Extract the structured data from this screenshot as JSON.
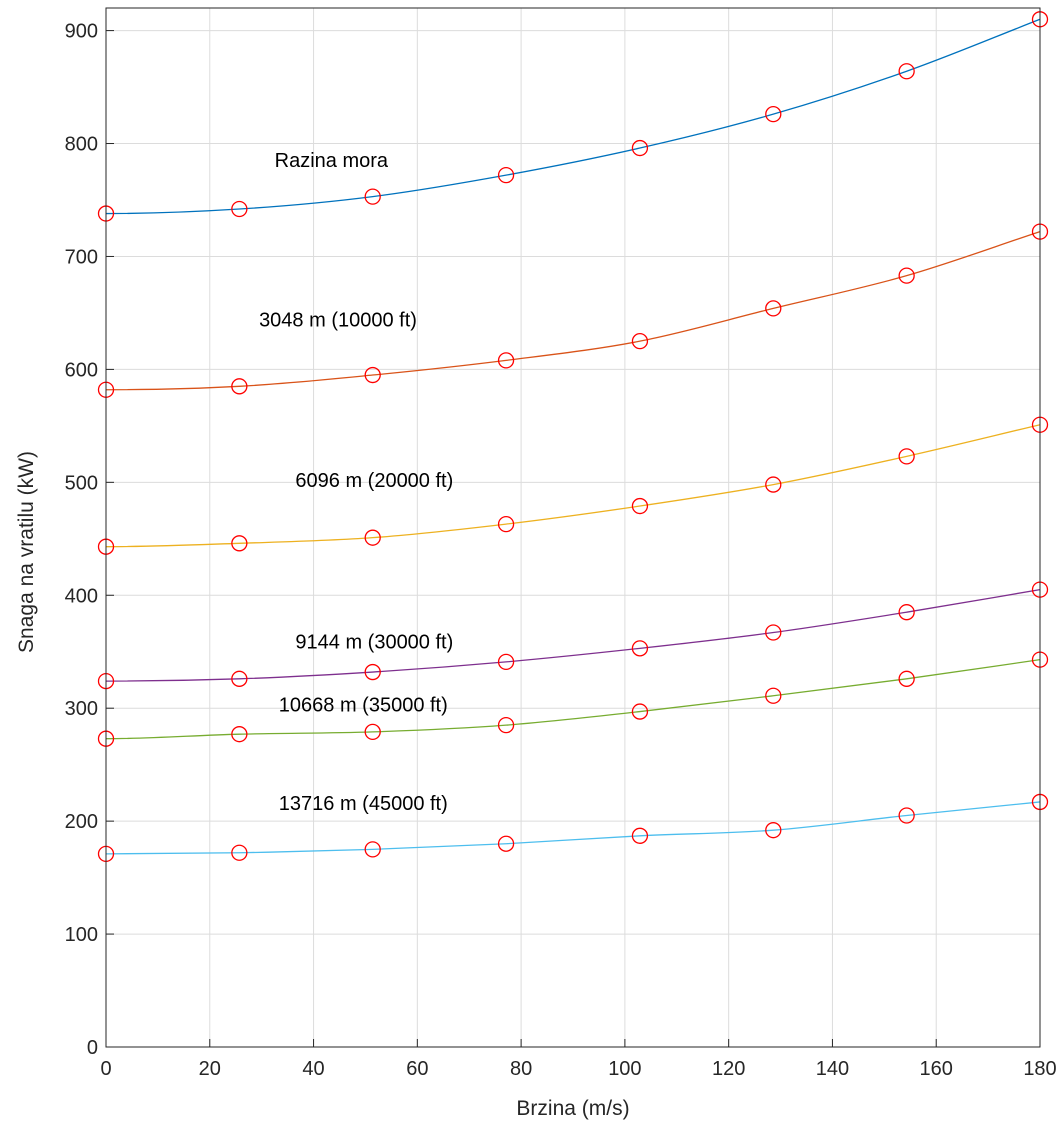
{
  "chart_data": {
    "type": "line",
    "title": "",
    "xlabel": "Brzina (m/s)",
    "ylabel": "Snaga na vratilu (kW)",
    "xlim": [
      0,
      180
    ],
    "ylim": [
      0,
      920
    ],
    "xticks": [
      0,
      20,
      40,
      60,
      80,
      100,
      120,
      140,
      160,
      180
    ],
    "yticks": [
      0,
      100,
      200,
      300,
      400,
      500,
      600,
      700,
      800,
      900
    ],
    "grid": true,
    "x": [
      0,
      25.7,
      51.4,
      77.1,
      102.9,
      128.6,
      154.3,
      180
    ],
    "marker": "circle",
    "marker_color": "#ff0000",
    "series": [
      {
        "name": "Razina mora",
        "color": "#0072bd",
        "values": [
          738,
          742,
          753,
          772,
          796,
          826,
          864,
          910
        ]
      },
      {
        "name": "3048 m (10000 ft)",
        "color": "#d95319",
        "values": [
          582,
          585,
          595,
          608,
          625,
          654,
          683,
          722
        ]
      },
      {
        "name": "6096 m (20000 ft)",
        "color": "#edb120",
        "values": [
          443,
          446,
          451,
          463,
          479,
          498,
          523,
          551
        ]
      },
      {
        "name": "9144 m (30000 ft)",
        "color": "#7e2f8e",
        "values": [
          324,
          326,
          332,
          341,
          353,
          367,
          385,
          405
        ]
      },
      {
        "name": "10668 m (35000 ft)",
        "color": "#77ac30",
        "values": [
          273,
          277,
          279,
          285,
          297,
          311,
          326,
          343
        ]
      },
      {
        "name": "13716 m (45000 ft)",
        "color": "#4dbeee",
        "values": [
          171,
          172,
          175,
          180,
          187,
          192,
          205,
          217
        ]
      }
    ],
    "annotations": [
      {
        "text": "Razina mora",
        "x": 32.5,
        "y": 779
      },
      {
        "text": "3048 m (10000 ft)",
        "x": 29.5,
        "y": 638
      },
      {
        "text": "6096 m (20000 ft)",
        "x": 36.5,
        "y": 496
      },
      {
        "text": "9144 m (30000 ft)",
        "x": 36.5,
        "y": 353
      },
      {
        "text": "10668 m (35000 ft)",
        "x": 33.3,
        "y": 297
      },
      {
        "text": "13716 m (45000 ft)",
        "x": 33.3,
        "y": 210
      }
    ]
  }
}
